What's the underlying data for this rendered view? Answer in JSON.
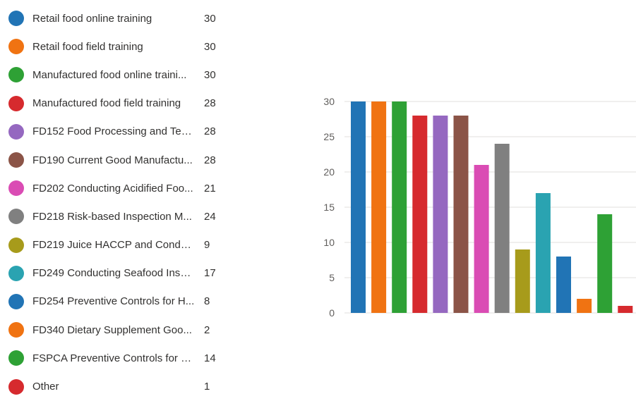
{
  "chart_data": {
    "type": "bar",
    "categories": [
      "Retail food online training",
      "Retail food field training",
      "Manufactured food online traini...",
      "Manufactured food field training",
      "FD152 Food Processing and Tec...",
      "FD190 Current Good Manufactu...",
      "FD202 Conducting Acidified Foo...",
      "FD218 Risk-based Inspection M...",
      "FD219 Juice HACCP and Conduc...",
      "FD249 Conducting Seafood Insp...",
      "FD254 Preventive Controls for H...",
      "FD340 Dietary Supplement Goo...",
      "FSPCA Preventive Controls for H...",
      "Other"
    ],
    "values": [
      30,
      30,
      30,
      28,
      28,
      28,
      21,
      24,
      9,
      17,
      8,
      2,
      14,
      1
    ],
    "colors": [
      "#2174b5",
      "#f07312",
      "#2ea135",
      "#d62a2e",
      "#9568c0",
      "#8b5447",
      "#da4cb4",
      "#808080",
      "#a79b1b",
      "#2aa3b1",
      "#2174b5",
      "#f07312",
      "#2ea135",
      "#d62a2e"
    ],
    "yticks": [
      "0",
      "5",
      "10",
      "15",
      "20",
      "25",
      "30"
    ],
    "ylim": [
      0,
      30
    ],
    "grid": true,
    "legend_position": "left"
  }
}
